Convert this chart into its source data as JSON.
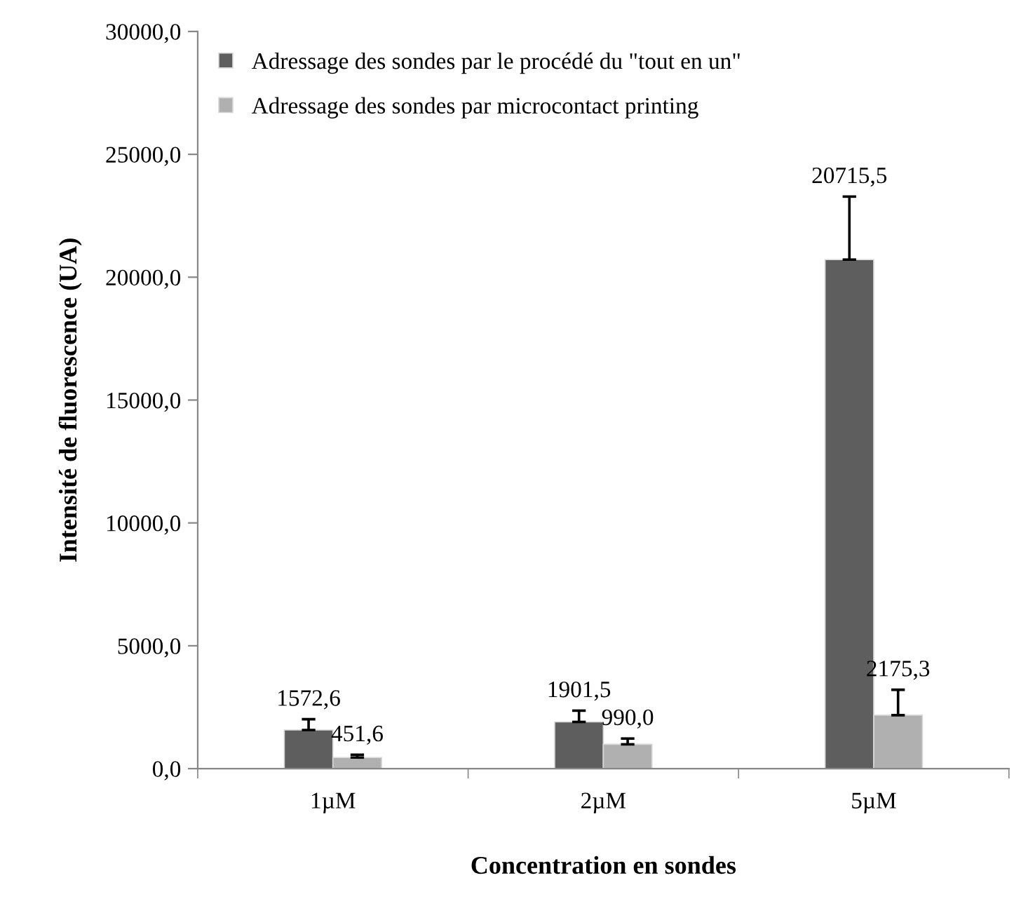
{
  "chart_data": {
    "type": "bar",
    "xlabel": "Concentration en sondes",
    "ylabel": "Intensité de fluorescence (UA)",
    "categories": [
      "1µM",
      "2µM",
      "5µM"
    ],
    "series": [
      {
        "name": "Adressage des sondes par le procédé du \"tout en un\"",
        "color": "#5e5e5e",
        "values": [
          1572.6,
          1901.5,
          20715.5
        ],
        "value_labels": [
          "1572,6",
          "1901,5",
          "20715,5"
        ],
        "errors": [
          [
            1572.6,
            2010
          ],
          [
            1901.5,
            2360
          ],
          [
            20715.5,
            23280
          ]
        ]
      },
      {
        "name": "Adressage des sondes par microcontact printing",
        "color": "#b0b0b0",
        "values": [
          451.6,
          990.0,
          2175.3
        ],
        "value_labels": [
          "451,6",
          "990,0",
          "2175,3"
        ],
        "errors": [
          [
            451.6,
            566
          ],
          [
            990.0,
            1225
          ],
          [
            2175.3,
            3210
          ]
        ]
      }
    ],
    "ylim": [
      0,
      30000
    ],
    "yticks": [
      {
        "value": 0,
        "label": "0,0"
      },
      {
        "value": 5000,
        "label": "5000,0"
      },
      {
        "value": 10000,
        "label": "10000,0"
      },
      {
        "value": 15000,
        "label": "15000,0"
      },
      {
        "value": 20000,
        "label": "20000,0"
      },
      {
        "value": 25000,
        "label": "25000,0"
      },
      {
        "value": 30000,
        "label": "30000,0"
      }
    ],
    "grid": false,
    "legend": "top left"
  }
}
